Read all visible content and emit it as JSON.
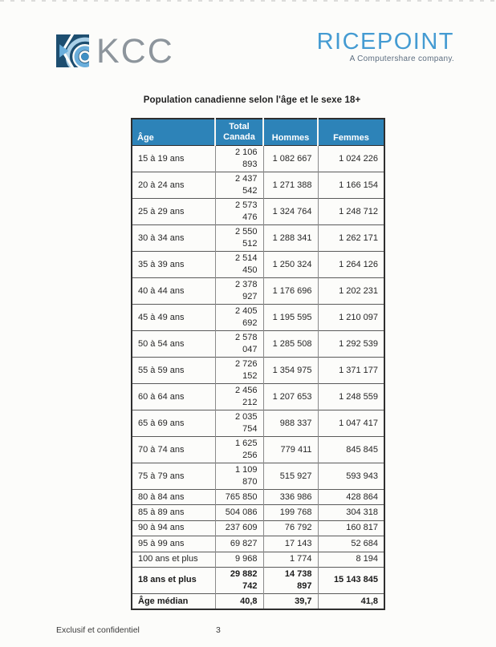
{
  "header": {
    "kcc_text": "KCC",
    "ricepoint_text": "RICEPOINT",
    "ricepoint_tagline": "A Computershare company."
  },
  "title": "Population canadienne selon l'âge et le sexe 18+",
  "table": {
    "headers": {
      "age": "Âge",
      "total_line1": "Total",
      "total_line2": "Canada",
      "hommes": "Hommes",
      "femmes": "Femmes"
    },
    "rows": [
      {
        "age": "15 à 19 ans",
        "total": "2 106 893",
        "hommes": "1 082 667",
        "femmes": "1 024 226",
        "bold": false
      },
      {
        "age": "20 à 24 ans",
        "total": "2 437 542",
        "hommes": "1 271 388",
        "femmes": "1 166 154",
        "bold": false
      },
      {
        "age": "25 à 29 ans",
        "total": "2 573 476",
        "hommes": "1 324 764",
        "femmes": "1 248 712",
        "bold": false
      },
      {
        "age": "30 à 34 ans",
        "total": "2 550 512",
        "hommes": "1 288 341",
        "femmes": "1 262 171",
        "bold": false
      },
      {
        "age": "35 à 39 ans",
        "total": "2 514 450",
        "hommes": "1 250 324",
        "femmes": "1 264 126",
        "bold": false
      },
      {
        "age": "40 à 44 ans",
        "total": "2 378 927",
        "hommes": "1 176 696",
        "femmes": "1 202 231",
        "bold": false
      },
      {
        "age": "45 à 49 ans",
        "total": "2 405 692",
        "hommes": "1 195 595",
        "femmes": "1 210 097",
        "bold": false
      },
      {
        "age": "50 à 54 ans",
        "total": "2 578 047",
        "hommes": "1 285 508",
        "femmes": "1 292 539",
        "bold": false
      },
      {
        "age": "55 à 59 ans",
        "total": "2 726 152",
        "hommes": "1 354 975",
        "femmes": "1 371 177",
        "bold": false
      },
      {
        "age": "60 à 64 ans",
        "total": "2 456 212",
        "hommes": "1 207 653",
        "femmes": "1 248 559",
        "bold": false
      },
      {
        "age": "65 à 69 ans",
        "total": "2 035 754",
        "hommes": "988 337",
        "femmes": "1 047 417",
        "bold": false
      },
      {
        "age": "70 à 74 ans",
        "total": "1 625 256",
        "hommes": "779 411",
        "femmes": "845 845",
        "bold": false
      },
      {
        "age": "75 à 79 ans",
        "total": "1 109 870",
        "hommes": "515 927",
        "femmes": "593 943",
        "bold": false
      },
      {
        "age": "80 à 84 ans",
        "total": "765 850",
        "hommes": "336 986",
        "femmes": "428 864",
        "bold": false
      },
      {
        "age": "85 à 89 ans",
        "total": "504 086",
        "hommes": "199 768",
        "femmes": "304 318",
        "bold": false
      },
      {
        "age": "90 à 94 ans",
        "total": "237 609",
        "hommes": "76 792",
        "femmes": "160 817",
        "bold": false
      },
      {
        "age": "95 à 99 ans",
        "total": "69 827",
        "hommes": "17 143",
        "femmes": "52 684",
        "bold": false
      },
      {
        "age": "100 ans et plus",
        "total": "9 968",
        "hommes": "1 774",
        "femmes": "8 194",
        "bold": false
      },
      {
        "age": "18 ans et plus",
        "total": "29 882 742",
        "hommes": "14 738 897",
        "femmes": "15 143 845",
        "bold": true
      },
      {
        "age": "Âge médian",
        "total": "40,8",
        "hommes": "39,7",
        "femmes": "41,8",
        "bold": true
      }
    ]
  },
  "footer": {
    "confidential": "Exclusif et confidentiel",
    "page_number": "3"
  },
  "colors": {
    "header_blue": "#2d83b8",
    "ricepoint_blue": "#449bd2",
    "page_bg": "#fcfcfa",
    "kcc_navy": "#1d4e70",
    "kcc_light_blue": "#6aaedb"
  }
}
